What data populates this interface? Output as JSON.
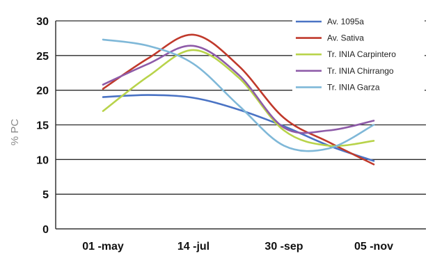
{
  "chart_data": {
    "type": "line",
    "title": "",
    "xlabel": "",
    "ylabel": "% PC",
    "categories": [
      "01 -may",
      "14 -jul",
      "30 -sep",
      "05 -nov"
    ],
    "ylim": [
      0,
      30
    ],
    "yticks": [
      "0",
      "5",
      "10",
      "15",
      "20",
      "25",
      "30"
    ],
    "grid": "horizontal",
    "legend_position": "top-right",
    "series": [
      {
        "name": "Av. 1095a",
        "color": "#4a73c4",
        "x": [
          0,
          0.5,
          1.0,
          1.5,
          2.0,
          2.5,
          3.0
        ],
        "values": [
          19.0,
          19.3,
          18.9,
          17.2,
          14.8,
          12.0,
          9.8
        ]
      },
      {
        "name": "Av. Sativa",
        "color": "#c0392b",
        "x": [
          0,
          0.5,
          1.0,
          1.5,
          2.0,
          2.5,
          3.0
        ],
        "values": [
          20.2,
          24.6,
          28.0,
          23.5,
          16.0,
          12.5,
          9.3
        ]
      },
      {
        "name": "Tr. INIA Carpintero",
        "color": "#b8d34a",
        "x": [
          0,
          0.5,
          1.0,
          1.5,
          2.0,
          2.5,
          3.0
        ],
        "values": [
          17.0,
          22.0,
          25.8,
          21.8,
          14.2,
          12.0,
          12.7
        ]
      },
      {
        "name": "Tr. INIA Chirrango",
        "color": "#8e5ba8",
        "x": [
          0,
          0.5,
          1.0,
          1.5,
          2.0,
          2.5,
          3.0
        ],
        "values": [
          20.8,
          23.8,
          26.4,
          22.2,
          14.6,
          14.2,
          15.6
        ]
      },
      {
        "name": "Tr. INIA Garza",
        "color": "#7fb8d8",
        "x": [
          0,
          0.5,
          1.0,
          1.5,
          2.0,
          2.5,
          3.0
        ],
        "values": [
          27.3,
          26.4,
          23.8,
          17.8,
          12.0,
          11.6,
          15.0
        ]
      }
    ]
  }
}
